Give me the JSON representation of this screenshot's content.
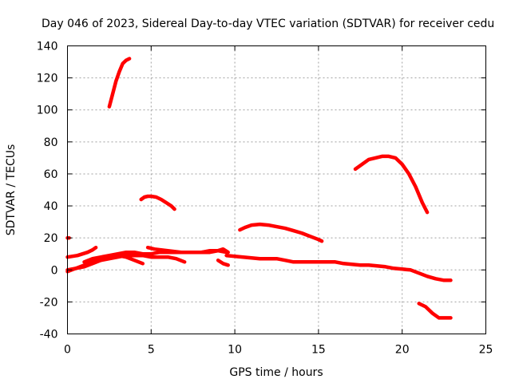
{
  "chart_data": {
    "type": "line",
    "title": "Day 046 of 2023, Sidereal Day-to-day VTEC variation (SDTVAR) for receiver cedu",
    "xlabel": "GPS time / hours",
    "ylabel": "SDTVAR / TECUs",
    "xlim": [
      0,
      25
    ],
    "ylim": [
      -40,
      140
    ],
    "xticks": [
      0,
      5,
      10,
      15,
      20,
      25
    ],
    "yticks": [
      -40,
      -20,
      0,
      20,
      40,
      60,
      80,
      100,
      120,
      140
    ],
    "grid": true,
    "color": "#ff0000",
    "series": [
      {
        "name": "arc-high",
        "x": [
          2.5,
          2.7,
          2.9,
          3.1,
          3.3,
          3.5,
          3.7
        ],
        "y": [
          102,
          110,
          118,
          124,
          129,
          131,
          132
        ]
      },
      {
        "name": "arc-mid-left",
        "x": [
          4.4,
          4.6,
          4.8,
          5.0,
          5.3,
          5.6,
          5.9,
          6.2,
          6.4
        ],
        "y": [
          44,
          45.5,
          46,
          46,
          45.5,
          44,
          42,
          40,
          38
        ]
      },
      {
        "name": "arc-mid-right",
        "x": [
          10.3,
          10.6,
          11.0,
          11.5,
          12.0,
          12.5,
          13.0,
          13.5,
          14.0,
          14.5,
          15.0,
          15.2
        ],
        "y": [
          25,
          26.5,
          28,
          28.5,
          28,
          27,
          26,
          24.5,
          23,
          21,
          19,
          18
        ]
      },
      {
        "name": "arc-peak-evening",
        "x": [
          17.2,
          17.6,
          18.0,
          18.4,
          18.8,
          19.2,
          19.6,
          20.0,
          20.4,
          20.8,
          21.2,
          21.5
        ],
        "y": [
          63,
          66,
          69,
          70,
          71,
          71,
          70,
          66,
          60,
          52,
          42,
          36
        ]
      },
      {
        "name": "arc-negative",
        "x": [
          21.0,
          21.4,
          21.8,
          22.2,
          22.6,
          22.9
        ],
        "y": [
          -21,
          -23,
          -27,
          -30,
          -30,
          -30
        ]
      },
      {
        "name": "early-rise",
        "x": [
          0.0,
          0.3,
          0.6,
          0.9,
          1.2,
          1.5,
          1.7
        ],
        "y": [
          8,
          8.5,
          9,
          10,
          11,
          12.5,
          14
        ]
      },
      {
        "name": "early-point",
        "x": [
          0.0,
          0.1
        ],
        "y": [
          20,
          20
        ]
      },
      {
        "name": "base-a",
        "x": [
          0.0,
          0.5,
          1.0,
          1.5,
          2.0,
          2.5,
          3.0,
          3.5,
          4.0,
          4.5
        ],
        "y": [
          0,
          1,
          2,
          4,
          6,
          8,
          9,
          8,
          6,
          4
        ]
      },
      {
        "name": "base-b",
        "x": [
          0.0,
          0.5,
          1.0,
          1.5,
          2.0,
          2.5,
          3.0,
          3.5,
          4.0,
          4.5,
          5.0,
          5.5,
          6.0,
          6.5,
          7.0
        ],
        "y": [
          -1,
          1,
          3,
          5,
          6,
          7,
          8,
          9,
          9,
          9,
          8,
          8,
          8,
          7,
          5
        ]
      },
      {
        "name": "base-c",
        "x": [
          1.0,
          1.5,
          2.0,
          2.5,
          3.0,
          3.5,
          4.0,
          4.5,
          5.0,
          5.5,
          6.0,
          6.5,
          7.0,
          7.5,
          8.0,
          8.5,
          9.0,
          9.5
        ],
        "y": [
          5,
          7,
          8,
          9,
          10,
          11,
          11,
          10,
          10,
          11,
          11,
          11,
          11,
          11,
          11,
          12,
          12,
          11
        ]
      },
      {
        "name": "base-d",
        "x": [
          4.8,
          5.2,
          5.6,
          6.0,
          6.4,
          6.8,
          7.2,
          7.6,
          8.0
        ],
        "y": [
          14,
          13,
          12.5,
          12,
          11.5,
          11,
          11,
          11,
          11
        ]
      },
      {
        "name": "base-e",
        "x": [
          8.0,
          8.5,
          9.0,
          9.3,
          9.6
        ],
        "y": [
          11,
          11,
          12,
          13,
          11
        ]
      },
      {
        "name": "base-f",
        "x": [
          9.0,
          9.3,
          9.6
        ],
        "y": [
          6,
          4,
          3
        ]
      },
      {
        "name": "base-long",
        "x": [
          9.5,
          10.0,
          10.5,
          11.0,
          11.5,
          12.0,
          12.5,
          13.0,
          13.5,
          14.0,
          14.5,
          15.0,
          15.5,
          16.0,
          16.5,
          17.0,
          17.5,
          18.0,
          18.5,
          19.0,
          19.5,
          20.0,
          20.5,
          21.0,
          21.5,
          22.0,
          22.5,
          22.9
        ],
        "y": [
          9,
          8.5,
          8,
          7.5,
          7,
          7,
          7,
          6,
          5,
          5,
          5,
          5,
          5,
          5,
          4,
          3.5,
          3,
          3,
          2.5,
          2,
          1,
          0.5,
          0,
          -2,
          -4,
          -5.5,
          -6.5,
          -6.5
        ]
      }
    ]
  }
}
